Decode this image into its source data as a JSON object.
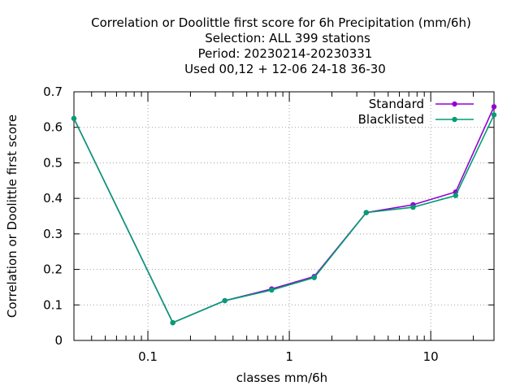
{
  "chart_data": {
    "type": "line",
    "title_lines": [
      "Correlation or Doolittle first score  for 6h Precipitation (mm/6h)",
      "Selection: ALL    399 stations",
      "Period: 20230214-20230331",
      "Used  00,12  + 12-06 24-18 36-30"
    ],
    "xlabel": "classes mm/6h",
    "ylabel": "Correlation or Doolittle first score",
    "x_scale": "log",
    "xlim": [
      0.03,
      28
    ],
    "ylim": [
      0,
      0.7
    ],
    "x_ticks": [
      {
        "value": 0.1,
        "label": "0.1"
      },
      {
        "value": 1,
        "label": "1"
      },
      {
        "value": 10,
        "label": "10"
      }
    ],
    "y_ticks": [
      {
        "value": 0,
        "label": "0"
      },
      {
        "value": 0.1,
        "label": "0.1"
      },
      {
        "value": 0.2,
        "label": "0.2"
      },
      {
        "value": 0.3,
        "label": "0.3"
      },
      {
        "value": 0.4,
        "label": "0.4"
      },
      {
        "value": 0.5,
        "label": "0.5"
      },
      {
        "value": 0.6,
        "label": "0.6"
      },
      {
        "value": 0.7,
        "label": "0.7"
      }
    ],
    "grid": true,
    "legend_position": "top-right",
    "x": [
      0.03,
      0.15,
      0.35,
      0.75,
      1.5,
      3.5,
      7.5,
      15,
      28
    ],
    "series": [
      {
        "name": "Standard",
        "color": "#9400d3",
        "values": [
          0.625,
          0.05,
          0.112,
          0.145,
          0.18,
          0.36,
          0.382,
          0.418,
          0.658
        ]
      },
      {
        "name": "Blacklisted",
        "color": "#009e73",
        "values": [
          0.625,
          0.05,
          0.112,
          0.142,
          0.177,
          0.36,
          0.375,
          0.408,
          0.635
        ]
      }
    ]
  }
}
